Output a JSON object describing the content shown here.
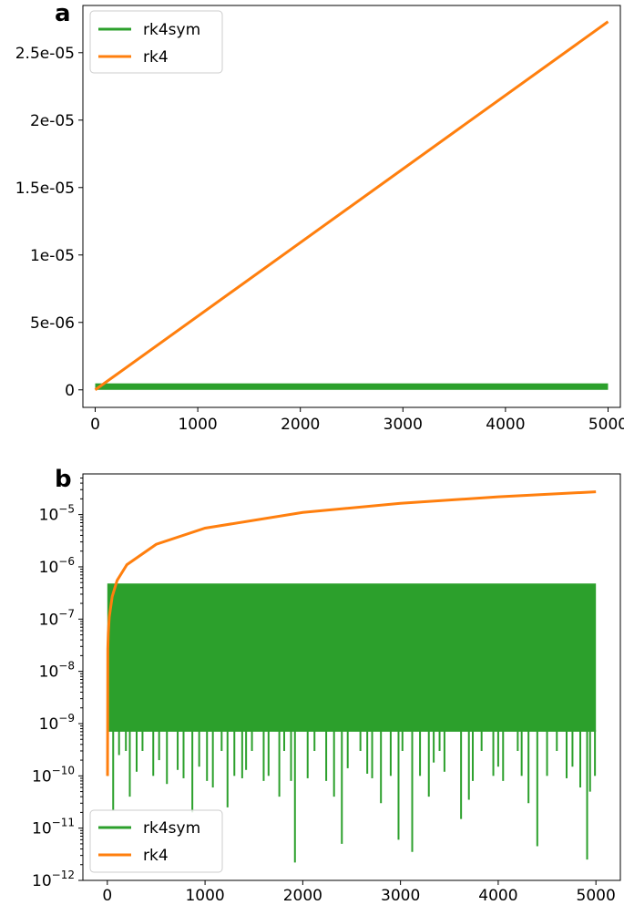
{
  "figure": {
    "panels": [
      {
        "letter": "a"
      },
      {
        "letter": "b"
      }
    ]
  },
  "chart_data": [
    {
      "type": "line",
      "panel": "a",
      "title": "",
      "xlabel": "",
      "ylabel": "",
      "xlim": [
        -120,
        5120
      ],
      "ylim": [
        -1.3e-06,
        2.85e-05
      ],
      "yscale": "linear",
      "x_ticks": [
        {
          "value": 0,
          "label": "0"
        },
        {
          "value": 1000,
          "label": "1000"
        },
        {
          "value": 2000,
          "label": "2000"
        },
        {
          "value": 3000,
          "label": "3000"
        },
        {
          "value": 4000,
          "label": "4000"
        },
        {
          "value": 5000,
          "label": "5000"
        }
      ],
      "y_ticks": [
        {
          "value": 0,
          "label": "0"
        },
        {
          "value": 5e-06,
          "label": "5e-06"
        },
        {
          "value": 1e-05,
          "label": "1e-05"
        },
        {
          "value": 1.5e-05,
          "label": "1.5e-05"
        },
        {
          "value": 2e-05,
          "label": "2e-05"
        },
        {
          "value": 2.5e-05,
          "label": "2.5e-05"
        }
      ],
      "grid": false,
      "legend_position": "top-left",
      "series": [
        {
          "name": "rk4sym",
          "color": "#2ca02c",
          "description": "dense oscillation between about 0 and 4.8e-07 across the full range",
          "band": [
            0,
            4.8e-07
          ],
          "x": [
            0,
            5000
          ],
          "y": [
            2.4e-07,
            2.4e-07
          ]
        },
        {
          "name": "rk4",
          "color": "#ff7f0e",
          "x": [
            0,
            5000
          ],
          "y": [
            0,
            2.73e-05
          ]
        }
      ]
    },
    {
      "type": "line",
      "panel": "b",
      "title": "",
      "xlabel": "",
      "ylabel": "",
      "xlim": [
        -250,
        5250
      ],
      "ylim": [
        1e-12,
        6e-05
      ],
      "yscale": "log",
      "x_ticks": [
        {
          "value": 0,
          "label": "0"
        },
        {
          "value": 1000,
          "label": "1000"
        },
        {
          "value": 2000,
          "label": "2000"
        },
        {
          "value": 3000,
          "label": "3000"
        },
        {
          "value": 4000,
          "label": "4000"
        },
        {
          "value": 5000,
          "label": "5000"
        }
      ],
      "y_ticks": [
        {
          "value": 1e-12,
          "base": "10",
          "exp": "−12"
        },
        {
          "value": 1e-11,
          "base": "10",
          "exp": "−11"
        },
        {
          "value": 1e-10,
          "base": "10",
          "exp": "−10"
        },
        {
          "value": 1e-09,
          "base": "10",
          "exp": "−9"
        },
        {
          "value": 1e-08,
          "base": "10",
          "exp": "−8"
        },
        {
          "value": 1e-07,
          "base": "10",
          "exp": "−7"
        },
        {
          "value": 1e-06,
          "base": "10",
          "exp": "−6"
        },
        {
          "value": 1e-05,
          "base": "10",
          "exp": "−5"
        }
      ],
      "grid": false,
      "legend_position": "bottom-left",
      "series": [
        {
          "name": "rk4sym",
          "color": "#2ca02c",
          "band_top": 4.8e-07,
          "band_bottom_typical": 7e-10,
          "x": [
            5,
            60,
            120,
            190,
            230,
            300,
            360,
            470,
            530,
            610,
            720,
            780,
            870,
            940,
            1020,
            1080,
            1170,
            1230,
            1300,
            1380,
            1420,
            1480,
            1600,
            1650,
            1760,
            1810,
            1880,
            1920,
            2050,
            2120,
            2240,
            2320,
            2400,
            2460,
            2590,
            2660,
            2710,
            2800,
            2900,
            2980,
            3020,
            3120,
            3200,
            3290,
            3340,
            3400,
            3450,
            3620,
            3700,
            3740,
            3830,
            3950,
            4000,
            4050,
            4200,
            4240,
            4310,
            4400,
            4500,
            4600,
            4700,
            4760,
            4840,
            4910,
            4940,
            4990
          ],
          "y": [
            1e-10,
            2.2e-11,
            2.5e-10,
            3e-10,
            4e-11,
            1.2e-10,
            3e-10,
            1e-10,
            2e-10,
            7e-11,
            1.3e-10,
            9e-11,
            2e-11,
            1.5e-10,
            8e-11,
            6e-11,
            3e-10,
            2.5e-11,
            1e-10,
            9e-11,
            1.3e-10,
            3e-10,
            8e-11,
            1e-10,
            4e-11,
            3e-10,
            8e-11,
            2.2e-12,
            9e-11,
            3e-10,
            8e-11,
            4e-11,
            5e-12,
            1.4e-10,
            3e-10,
            1.1e-10,
            9e-11,
            3e-11,
            1e-10,
            6e-12,
            3e-10,
            3.5e-12,
            1e-10,
            4e-11,
            1.8e-10,
            3e-10,
            1.2e-10,
            1.5e-11,
            3.5e-11,
            8e-11,
            3e-10,
            1e-10,
            1.5e-10,
            8e-11,
            3e-10,
            1e-10,
            3e-11,
            4.5e-12,
            1e-10,
            3e-10,
            9e-11,
            1.5e-10,
            6e-11,
            2.5e-12,
            5e-11,
            1e-10
          ]
        },
        {
          "name": "rk4",
          "color": "#ff7f0e",
          "x": [
            2,
            5,
            10,
            20,
            50,
            100,
            200,
            500,
            1000,
            2000,
            3000,
            4000,
            5000
          ],
          "y": [
            1e-10,
            2.7e-08,
            5.5e-08,
            1.1e-07,
            2.7e-07,
            5.5e-07,
            1.1e-06,
            2.7e-06,
            5.5e-06,
            1.1e-05,
            1.64e-05,
            2.19e-05,
            2.73e-05
          ]
        }
      ]
    }
  ]
}
